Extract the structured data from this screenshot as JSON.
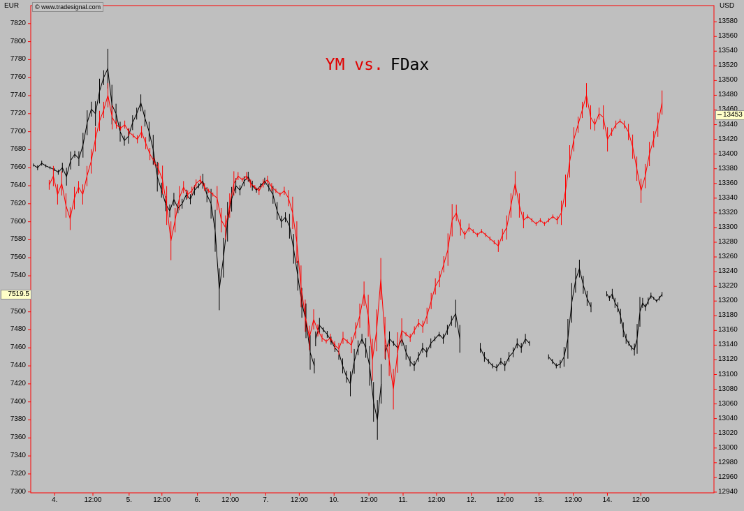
{
  "header": {
    "left_axis_currency": "EUR",
    "right_axis_currency": "USD",
    "copyright": "© www.tradesignal.com"
  },
  "title": {
    "red_part": "YM vs.",
    "black_part": "FDax"
  },
  "colors": {
    "background": "#bfbfbf",
    "axis": "#ff0000",
    "ym_series": "#ff0000",
    "fdax_series": "#000000",
    "marker_bg": "#ffffc8"
  },
  "markers": {
    "left": {
      "label": "7519.5",
      "price": 7519.5
    },
    "right": {
      "label": "13453",
      "price": 13453
    }
  },
  "chart_data": {
    "type": "line",
    "title": "YM vs. FDax",
    "grid": false,
    "left_axis": {
      "label": "EUR",
      "tick_min": 7300,
      "tick_max": 7820,
      "tick_step": 20,
      "range": [
        7299,
        7840
      ]
    },
    "right_axis": {
      "label": "USD",
      "tick_min": 12940,
      "tick_max": 13580,
      "tick_step": 20,
      "range": [
        12939,
        13602
      ]
    },
    "x_labels": [
      {
        "text": "4.",
        "pos": 0.035
      },
      {
        "text": "12:00",
        "pos": 0.091
      },
      {
        "text": "5.",
        "pos": 0.144
      },
      {
        "text": "12:00",
        "pos": 0.192
      },
      {
        "text": "6.",
        "pos": 0.244
      },
      {
        "text": "12:00",
        "pos": 0.292
      },
      {
        "text": "7.",
        "pos": 0.344
      },
      {
        "text": "12:00",
        "pos": 0.393
      },
      {
        "text": "10.",
        "pos": 0.444
      },
      {
        "text": "12:00",
        "pos": 0.495
      },
      {
        "text": "11.",
        "pos": 0.545
      },
      {
        "text": "12:00",
        "pos": 0.594
      },
      {
        "text": "12.",
        "pos": 0.645
      },
      {
        "text": "12:00",
        "pos": 0.694
      },
      {
        "text": "13.",
        "pos": 0.744
      },
      {
        "text": "12:00",
        "pos": 0.794
      },
      {
        "text": "14.",
        "pos": 0.844
      },
      {
        "text": "12:00",
        "pos": 0.893
      }
    ],
    "series": [
      {
        "name": "YM",
        "color": "#ff0000",
        "axis": "right",
        "segments": [
          {
            "x_start": 0.027,
            "x_end": 0.924,
            "values": [
              13358,
              13370,
              13345,
              13360,
              13330,
              13312,
              13340,
              13355,
              13345,
              13370,
              13390,
              13420,
              13445,
              13460,
              13480,
              13450,
              13440,
              13435,
              13440,
              13430,
              13425,
              13420,
              13430,
              13415,
              13400,
              13390,
              13380,
              13365,
              13330,
              13282,
              13310,
              13340,
              13355,
              13345,
              13350,
              13360,
              13365,
              13355,
              13350,
              13345,
              13340,
              13310,
              13300,
              13330,
              13360,
              13370,
              13365,
              13370,
              13360,
              13355,
              13350,
              13360,
              13365,
              13355,
              13350,
              13345,
              13350,
              13340,
              13320,
              13280,
              13220,
              13180,
              13150,
              13175,
              13160,
              13150,
              13145,
              13150,
              13140,
              13135,
              13150,
              13145,
              13140,
              13160,
              13180,
              13210,
              13180,
              13120,
              13160,
              13230,
              13150,
              13120,
              13080,
              13130,
              13160,
              13155,
              13150,
              13160,
              13170,
              13165,
              13180,
              13200,
              13220,
              13230,
              13250,
              13270,
              13310,
              13320,
              13300,
              13290,
              13300,
              13295,
              13290,
              13295,
              13290,
              13285,
              13280,
              13275,
              13290,
              13300,
              13330,
              13360,
              13330,
              13310,
              13315,
              13310,
              13305,
              13310,
              13305,
              13310,
              13315,
              13310,
              13320,
              13350,
              13390,
              13420,
              13440,
              13460,
              13480,
              13450,
              13440,
              13455,
              13450,
              13420,
              13430,
              13440,
              13445,
              13440,
              13430,
              13410,
              13380,
              13350,
              13370,
              13400,
              13420,
              13440,
              13470
            ]
          }
        ]
      },
      {
        "name": "FDax",
        "color": "#000000",
        "axis": "left",
        "segments": [
          {
            "x_start": 0.004,
            "x_end": 0.415,
            "values": [
              7663,
              7660,
              7665,
              7662,
              7660,
              7658,
              7655,
              7660,
              7650,
              7668,
              7675,
              7670,
              7685,
              7710,
              7725,
              7720,
              7745,
              7760,
              7770,
              7730,
              7720,
              7700,
              7690,
              7695,
              7710,
              7720,
              7732,
              7715,
              7700,
              7680,
              7650,
              7635,
              7620,
              7612,
              7625,
              7615,
              7620,
              7630,
              7625,
              7635,
              7640,
              7645,
              7630,
              7620,
              7590,
              7525,
              7560,
              7600,
              7625,
              7640,
              7635,
              7645,
              7650,
              7640,
              7635,
              7640,
              7645,
              7638,
              7630,
              7612,
              7600,
              7605,
              7595,
              7570,
              7540,
              7510,
              7490,
              7455,
              7440
            ]
          },
          {
            "x_start": 0.417,
            "x_end": 0.513,
            "values": [
              7470,
              7485,
              7480,
              7475,
              7468,
              7460,
              7455,
              7440,
              7428,
              7420,
              7445,
              7460,
              7470,
              7460,
              7440,
              7400,
              7380,
              7420
            ]
          },
          {
            "x_start": 0.519,
            "x_end": 0.628,
            "values": [
              7455,
              7470,
              7465,
              7460,
              7470,
              7455,
              7445,
              7440,
              7450,
              7460,
              7455,
              7465,
              7470,
              7475,
              7470,
              7480,
              7490,
              7498,
              7470
            ]
          },
          {
            "x_start": 0.658,
            "x_end": 0.73,
            "values": [
              7460,
              7450,
              7445,
              7440,
              7438,
              7445,
              7440,
              7450,
              7455,
              7465,
              7460,
              7470,
              7465
            ]
          },
          {
            "x_start": 0.758,
            "x_end": 0.82,
            "values": [
              7450,
              7445,
              7440,
              7442,
              7450,
              7470,
              7510,
              7535,
              7548,
              7530,
              7515,
              7505
            ]
          },
          {
            "x_start": 0.843,
            "x_end": 0.924,
            "values": [
              7520,
              7515,
              7520,
              7510,
              7505,
              7495,
              7480,
              7470,
              7465,
              7460,
              7458,
              7470,
              7500,
              7510,
              7505,
              7512,
              7518,
              7515,
              7512,
              7515,
              7519.5
            ]
          }
        ]
      }
    ]
  }
}
